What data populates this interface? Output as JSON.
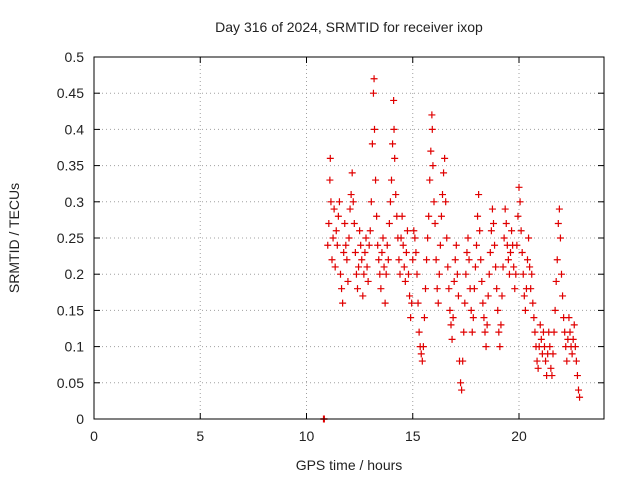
{
  "chart_data": {
    "type": "scatter",
    "title": "Day 316 of 2024, SRMTID for receiver ixop",
    "xlabel": "GPS time / hours",
    "ylabel": "SRMTID / TECUs",
    "xlim": [
      0,
      24
    ],
    "ylim": [
      0,
      0.5
    ],
    "xticks": [
      0,
      5,
      10,
      15,
      20
    ],
    "xtick_labels": [
      "0",
      "5",
      "10",
      "15",
      "20"
    ],
    "yticks": [
      0,
      0.05,
      0.1,
      0.15,
      0.2,
      0.25,
      0.3,
      0.35,
      0.4,
      0.45,
      0.5
    ],
    "ytick_labels": [
      "0",
      "0.05",
      "0.1",
      "0.15",
      "0.2",
      "0.25",
      "0.3",
      "0.35",
      "0.4",
      "0.45",
      "0.5"
    ],
    "grid": true,
    "marker": "+",
    "color": "#e00000",
    "series": [
      {
        "name": "SRMTID",
        "points": [
          [
            10.8,
            0.0
          ],
          [
            10.82,
            0.0
          ],
          [
            10.84,
            0.0
          ],
          [
            11.0,
            0.24
          ],
          [
            11.05,
            0.27
          ],
          [
            11.1,
            0.33
          ],
          [
            11.12,
            0.36
          ],
          [
            11.15,
            0.3
          ],
          [
            11.2,
            0.22
          ],
          [
            11.25,
            0.25
          ],
          [
            11.3,
            0.29
          ],
          [
            11.35,
            0.21
          ],
          [
            11.4,
            0.26
          ],
          [
            11.45,
            0.24
          ],
          [
            11.5,
            0.28
          ],
          [
            11.55,
            0.3
          ],
          [
            11.6,
            0.2
          ],
          [
            11.65,
            0.18
          ],
          [
            11.7,
            0.16
          ],
          [
            11.75,
            0.23
          ],
          [
            11.8,
            0.27
          ],
          [
            11.85,
            0.24
          ],
          [
            11.9,
            0.22
          ],
          [
            11.95,
            0.19
          ],
          [
            12.0,
            0.25
          ],
          [
            12.05,
            0.29
          ],
          [
            12.1,
            0.31
          ],
          [
            12.15,
            0.34
          ],
          [
            12.2,
            0.3
          ],
          [
            12.25,
            0.27
          ],
          [
            12.3,
            0.23
          ],
          [
            12.35,
            0.2
          ],
          [
            12.4,
            0.18
          ],
          [
            12.45,
            0.21
          ],
          [
            12.5,
            0.26
          ],
          [
            12.55,
            0.24
          ],
          [
            12.6,
            0.22
          ],
          [
            12.65,
            0.17
          ],
          [
            12.7,
            0.2
          ],
          [
            12.75,
            0.23
          ],
          [
            12.8,
            0.25
          ],
          [
            12.85,
            0.21
          ],
          [
            12.9,
            0.19
          ],
          [
            12.95,
            0.24
          ],
          [
            13.0,
            0.26
          ],
          [
            13.05,
            0.3
          ],
          [
            13.1,
            0.38
          ],
          [
            13.15,
            0.45
          ],
          [
            13.18,
            0.47
          ],
          [
            13.2,
            0.4
          ],
          [
            13.25,
            0.33
          ],
          [
            13.3,
            0.28
          ],
          [
            13.35,
            0.24
          ],
          [
            13.4,
            0.22
          ],
          [
            13.45,
            0.2
          ],
          [
            13.5,
            0.18
          ],
          [
            13.55,
            0.23
          ],
          [
            13.6,
            0.25
          ],
          [
            13.65,
            0.21
          ],
          [
            13.7,
            0.16
          ],
          [
            13.75,
            0.2
          ],
          [
            13.8,
            0.24
          ],
          [
            13.85,
            0.22
          ],
          [
            13.9,
            0.27
          ],
          [
            13.95,
            0.3
          ],
          [
            14.0,
            0.33
          ],
          [
            14.05,
            0.38
          ],
          [
            14.1,
            0.44
          ],
          [
            14.12,
            0.4
          ],
          [
            14.15,
            0.36
          ],
          [
            14.2,
            0.31
          ],
          [
            14.25,
            0.28
          ],
          [
            14.3,
            0.25
          ],
          [
            14.35,
            0.22
          ],
          [
            14.4,
            0.2
          ],
          [
            14.45,
            0.25
          ],
          [
            14.5,
            0.28
          ],
          [
            14.55,
            0.24
          ],
          [
            14.6,
            0.21
          ],
          [
            14.65,
            0.19
          ],
          [
            14.7,
            0.23
          ],
          [
            14.75,
            0.26
          ],
          [
            14.8,
            0.2
          ],
          [
            14.85,
            0.17
          ],
          [
            14.9,
            0.14
          ],
          [
            14.95,
            0.16
          ],
          [
            15.0,
            0.22
          ],
          [
            15.05,
            0.26
          ],
          [
            15.1,
            0.25
          ],
          [
            15.15,
            0.23
          ],
          [
            15.2,
            0.2
          ],
          [
            15.25,
            0.16
          ],
          [
            15.3,
            0.12
          ],
          [
            15.35,
            0.1
          ],
          [
            15.4,
            0.09
          ],
          [
            15.45,
            0.08
          ],
          [
            15.5,
            0.1
          ],
          [
            15.55,
            0.14
          ],
          [
            15.6,
            0.18
          ],
          [
            15.65,
            0.22
          ],
          [
            15.7,
            0.25
          ],
          [
            15.75,
            0.28
          ],
          [
            15.8,
            0.33
          ],
          [
            15.85,
            0.37
          ],
          [
            15.9,
            0.42
          ],
          [
            15.92,
            0.4
          ],
          [
            15.95,
            0.35
          ],
          [
            16.0,
            0.3
          ],
          [
            16.05,
            0.27
          ],
          [
            16.1,
            0.22
          ],
          [
            16.15,
            0.18
          ],
          [
            16.2,
            0.16
          ],
          [
            16.25,
            0.2
          ],
          [
            16.3,
            0.24
          ],
          [
            16.35,
            0.28
          ],
          [
            16.4,
            0.31
          ],
          [
            16.45,
            0.34
          ],
          [
            16.5,
            0.36
          ],
          [
            16.55,
            0.3
          ],
          [
            16.6,
            0.25
          ],
          [
            16.65,
            0.21
          ],
          [
            16.7,
            0.18
          ],
          [
            16.75,
            0.15
          ],
          [
            16.8,
            0.13
          ],
          [
            16.85,
            0.11
          ],
          [
            16.9,
            0.14
          ],
          [
            16.95,
            0.19
          ],
          [
            17.0,
            0.22
          ],
          [
            17.05,
            0.24
          ],
          [
            17.1,
            0.2
          ],
          [
            17.15,
            0.17
          ],
          [
            17.2,
            0.08
          ],
          [
            17.25,
            0.05
          ],
          [
            17.3,
            0.04
          ],
          [
            17.35,
            0.08
          ],
          [
            17.4,
            0.12
          ],
          [
            17.45,
            0.16
          ],
          [
            17.5,
            0.2
          ],
          [
            17.55,
            0.23
          ],
          [
            17.6,
            0.25
          ],
          [
            17.65,
            0.22
          ],
          [
            17.7,
            0.18
          ],
          [
            17.75,
            0.15
          ],
          [
            17.8,
            0.12
          ],
          [
            17.85,
            0.14
          ],
          [
            17.9,
            0.18
          ],
          [
            17.95,
            0.21
          ],
          [
            18.0,
            0.24
          ],
          [
            18.05,
            0.28
          ],
          [
            18.1,
            0.31
          ],
          [
            18.15,
            0.26
          ],
          [
            18.2,
            0.22
          ],
          [
            18.25,
            0.19
          ],
          [
            18.3,
            0.16
          ],
          [
            18.35,
            0.14
          ],
          [
            18.4,
            0.12
          ],
          [
            18.45,
            0.1
          ],
          [
            18.5,
            0.13
          ],
          [
            18.55,
            0.17
          ],
          [
            18.6,
            0.2
          ],
          [
            18.65,
            0.23
          ],
          [
            18.7,
            0.26
          ],
          [
            18.75,
            0.29
          ],
          [
            18.8,
            0.27
          ],
          [
            18.85,
            0.24
          ],
          [
            18.9,
            0.21
          ],
          [
            18.95,
            0.18
          ],
          [
            19.0,
            0.15
          ],
          [
            19.05,
            0.12
          ],
          [
            19.1,
            0.1
          ],
          [
            19.15,
            0.13
          ],
          [
            19.2,
            0.17
          ],
          [
            19.25,
            0.21
          ],
          [
            19.3,
            0.25
          ],
          [
            19.35,
            0.29
          ],
          [
            19.4,
            0.27
          ],
          [
            19.45,
            0.24
          ],
          [
            19.5,
            0.22
          ],
          [
            19.55,
            0.2
          ],
          [
            19.6,
            0.23
          ],
          [
            19.65,
            0.26
          ],
          [
            19.7,
            0.24
          ],
          [
            19.75,
            0.21
          ],
          [
            19.8,
            0.18
          ],
          [
            19.85,
            0.2
          ],
          [
            19.9,
            0.24
          ],
          [
            19.95,
            0.28
          ],
          [
            20.0,
            0.32
          ],
          [
            20.05,
            0.3
          ],
          [
            20.1,
            0.26
          ],
          [
            20.15,
            0.23
          ],
          [
            20.2,
            0.2
          ],
          [
            20.25,
            0.17
          ],
          [
            20.3,
            0.15
          ],
          [
            20.35,
            0.18
          ],
          [
            20.4,
            0.22
          ],
          [
            20.45,
            0.25
          ],
          [
            20.5,
            0.21
          ],
          [
            20.55,
            0.18
          ],
          [
            20.6,
            0.2
          ],
          [
            20.65,
            0.16
          ],
          [
            20.7,
            0.14
          ],
          [
            20.75,
            0.12
          ],
          [
            20.8,
            0.1
          ],
          [
            20.85,
            0.08
          ],
          [
            20.9,
            0.07
          ],
          [
            20.95,
            0.1
          ],
          [
            21.0,
            0.13
          ],
          [
            21.05,
            0.11
          ],
          [
            21.1,
            0.09
          ],
          [
            21.15,
            0.12
          ],
          [
            21.2,
            0.1
          ],
          [
            21.25,
            0.08
          ],
          [
            21.3,
            0.06
          ],
          [
            21.35,
            0.09
          ],
          [
            21.4,
            0.12
          ],
          [
            21.45,
            0.1
          ],
          [
            21.5,
            0.07
          ],
          [
            21.55,
            0.06
          ],
          [
            21.6,
            0.09
          ],
          [
            21.65,
            0.12
          ],
          [
            21.7,
            0.15
          ],
          [
            21.75,
            0.19
          ],
          [
            21.8,
            0.22
          ],
          [
            21.85,
            0.27
          ],
          [
            21.9,
            0.29
          ],
          [
            21.95,
            0.25
          ],
          [
            22.0,
            0.2
          ],
          [
            22.05,
            0.17
          ],
          [
            22.1,
            0.14
          ],
          [
            22.15,
            0.12
          ],
          [
            22.2,
            0.1
          ],
          [
            22.25,
            0.08
          ],
          [
            22.3,
            0.11
          ],
          [
            22.35,
            0.14
          ],
          [
            22.4,
            0.12
          ],
          [
            22.45,
            0.1
          ],
          [
            22.5,
            0.09
          ],
          [
            22.55,
            0.11
          ],
          [
            22.6,
            0.13
          ],
          [
            22.65,
            0.1
          ],
          [
            22.7,
            0.08
          ],
          [
            22.75,
            0.06
          ],
          [
            22.8,
            0.04
          ],
          [
            22.85,
            0.03
          ]
        ]
      }
    ]
  }
}
